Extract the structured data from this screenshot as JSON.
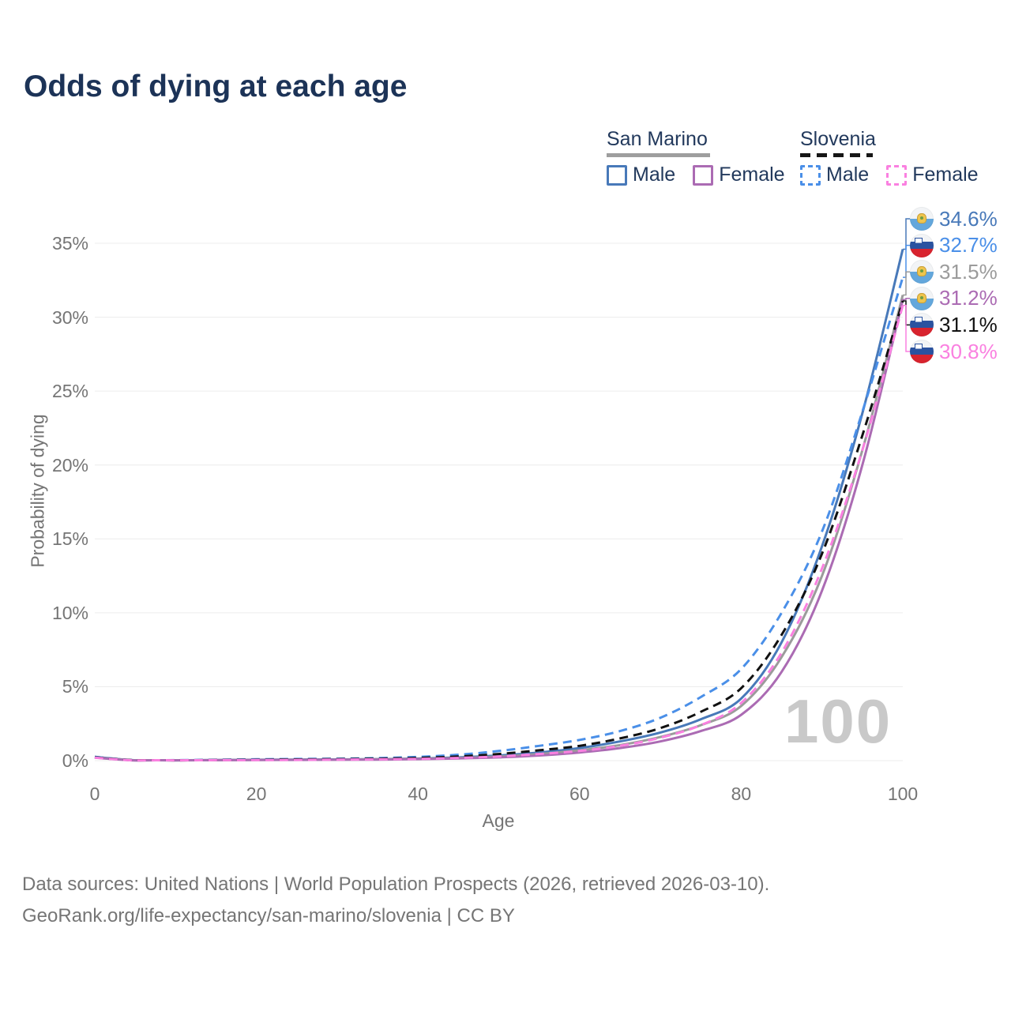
{
  "title": "Odds of dying at each age",
  "legend": {
    "groups": [
      {
        "label": "San Marino",
        "line_style": "solid",
        "swatch_color": "#9e9e9e",
        "items": [
          {
            "label": "Male",
            "color": "#4879b9"
          },
          {
            "label": "Female",
            "color": "#ab6bb3"
          }
        ]
      },
      {
        "label": "Slovenia",
        "line_style": "dashed",
        "swatch_color": "#161616",
        "items": [
          {
            "label": "Male",
            "color": "#4a8fe8"
          },
          {
            "label": "Female",
            "color": "#fa80e0"
          }
        ]
      }
    ]
  },
  "chart_data": {
    "type": "line",
    "xlabel": "Age",
    "ylabel": "Probability of dying",
    "xlim": [
      0,
      100
    ],
    "ylim_pct": [
      0,
      35
    ],
    "xticks": [
      "0",
      "20",
      "40",
      "60",
      "80",
      "100"
    ],
    "xtick_values": [
      0,
      20,
      40,
      60,
      80,
      100
    ],
    "ytick_labels": [
      "0%",
      "5%",
      "10%",
      "15%",
      "20%",
      "25%",
      "30%",
      "35%"
    ],
    "ytick_values": [
      0,
      5,
      10,
      15,
      20,
      25,
      30,
      35
    ],
    "grid": "horizontal-only",
    "legend_position": "top-right",
    "age_indicator": "100",
    "ages": [
      0,
      5,
      10,
      15,
      20,
      25,
      30,
      35,
      40,
      45,
      50,
      55,
      60,
      65,
      70,
      75,
      80,
      85,
      90,
      95,
      100
    ],
    "series": [
      {
        "name": "San Marino Male",
        "country": "San Marino",
        "sex": "Male",
        "flag": "san-marino",
        "dash": false,
        "color": "#4879b9",
        "end_label": "34.6%",
        "end_value": 34.6,
        "values": [
          0.25,
          0.02,
          0.02,
          0.04,
          0.06,
          0.07,
          0.08,
          0.1,
          0.14,
          0.22,
          0.35,
          0.55,
          0.85,
          1.3,
          1.9,
          2.8,
          4.2,
          8.0,
          14.5,
          23.5,
          34.6
        ]
      },
      {
        "name": "Slovenia Male",
        "country": "Slovenia",
        "sex": "Male",
        "flag": "slovenia",
        "dash": true,
        "color": "#4a8fe8",
        "end_label": "32.7%",
        "end_value": 32.7,
        "values": [
          0.25,
          0.02,
          0.03,
          0.06,
          0.09,
          0.11,
          0.13,
          0.17,
          0.25,
          0.4,
          0.65,
          1.0,
          1.4,
          2.0,
          2.9,
          4.3,
          6.2,
          10.0,
          15.5,
          23.6,
          32.7
        ]
      },
      {
        "name": "San Marino Both",
        "country": "San Marino",
        "sex": "Both",
        "flag": "san-marino",
        "dash": false,
        "color": "#9b9b9b",
        "end_label": "31.5%",
        "end_value": 31.5,
        "values": [
          0.22,
          0.02,
          0.02,
          0.03,
          0.05,
          0.06,
          0.07,
          0.09,
          0.12,
          0.18,
          0.28,
          0.45,
          0.7,
          1.05,
          1.6,
          2.4,
          3.7,
          7.0,
          12.5,
          21.0,
          31.5
        ]
      },
      {
        "name": "San Marino Female",
        "country": "San Marino",
        "sex": "Female",
        "flag": "san-marino",
        "dash": false,
        "color": "#ab6bb3",
        "end_label": "31.2%",
        "end_value": 31.2,
        "values": [
          0.2,
          0.01,
          0.02,
          0.03,
          0.04,
          0.05,
          0.06,
          0.07,
          0.1,
          0.15,
          0.22,
          0.35,
          0.55,
          0.85,
          1.3,
          2.0,
          3.1,
          6.0,
          11.5,
          20.0,
          31.2
        ]
      },
      {
        "name": "Slovenia Both",
        "country": "Slovenia",
        "sex": "Both",
        "flag": "slovenia",
        "dash": true,
        "color": "#111111",
        "end_label": "31.1%",
        "end_value": 31.1,
        "values": [
          0.22,
          0.02,
          0.02,
          0.04,
          0.06,
          0.08,
          0.1,
          0.13,
          0.18,
          0.28,
          0.45,
          0.7,
          1.0,
          1.5,
          2.2,
          3.3,
          4.9,
          8.5,
          14.0,
          22.0,
          31.1
        ]
      },
      {
        "name": "Slovenia Female",
        "country": "Slovenia",
        "sex": "Female",
        "flag": "slovenia",
        "dash": true,
        "color": "#fa80e0",
        "end_label": "30.8%",
        "end_value": 30.8,
        "values": [
          0.2,
          0.01,
          0.02,
          0.03,
          0.04,
          0.05,
          0.07,
          0.09,
          0.12,
          0.18,
          0.28,
          0.45,
          0.65,
          1.0,
          1.55,
          2.4,
          3.9,
          7.3,
          13.0,
          21.0,
          30.8
        ]
      }
    ]
  },
  "footer": {
    "line1": "Data sources: United Nations | World Population Prospects (2026, retrieved 2026-03-10).",
    "line2": "GeoRank.org/life-expectancy/san-marino/slovenia | CC BY"
  }
}
